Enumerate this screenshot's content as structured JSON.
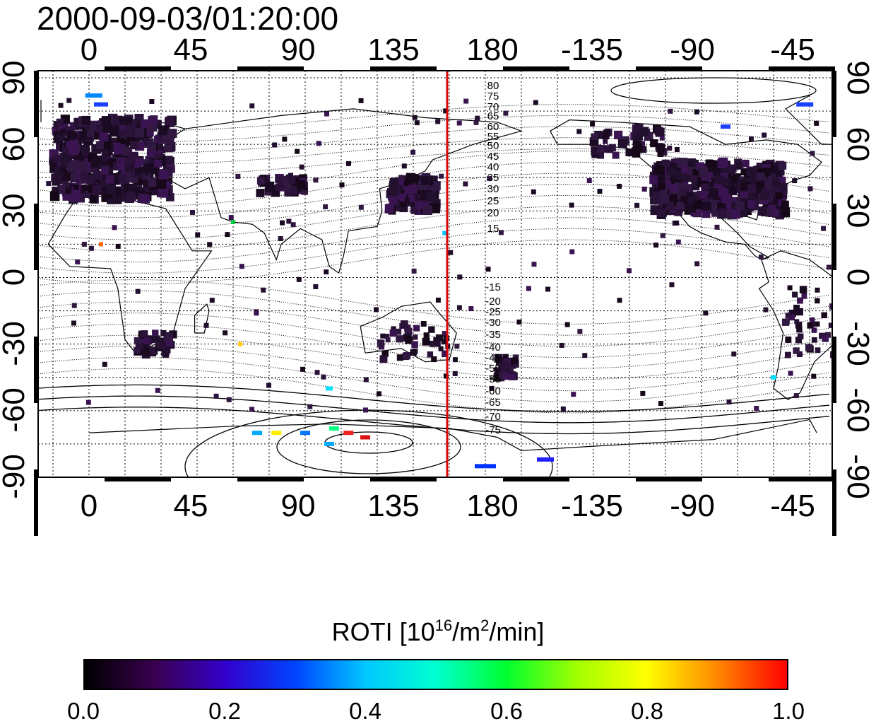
{
  "title": "2000-09-03/01:20:00",
  "map": {
    "type": "world-map",
    "x_tick_labels": [
      "0",
      "45",
      "90",
      "135",
      "180",
      "-135",
      "-90",
      "-45"
    ],
    "y_tick_labels": [
      "90",
      "60",
      "30",
      "0",
      "-30",
      "-60",
      "-90"
    ],
    "terminator_longitude": 160,
    "terminator_color": "#e00000",
    "contour_labels_north": [
      "80",
      "75",
      "70",
      "65",
      "60",
      "55",
      "50",
      "45",
      "40",
      "35",
      "30",
      "25",
      "20",
      "15"
    ],
    "contour_labels_south": [
      "-15",
      "-20",
      "-25",
      "-30",
      "-35",
      "-40",
      "-45",
      "-50",
      "-55",
      "-60",
      "-65",
      "-70",
      "-75"
    ]
  },
  "colorbar": {
    "title_prefix": "ROTI  [10",
    "title_exp1": "16",
    "title_mid": "/m",
    "title_exp2": "2",
    "title_suffix": "/min]",
    "tick_labels": [
      "0.0",
      "0.2",
      "0.4",
      "0.6",
      "0.8",
      "1.0"
    ],
    "range": [
      0.0,
      1.0
    ],
    "colors": [
      "#000000",
      "#3a0050",
      "#3300cc",
      "#0044ff",
      "#00c8ff",
      "#00ffd0",
      "#00ff30",
      "#a0ff00",
      "#ffff00",
      "#ff8800",
      "#ff0000"
    ]
  }
}
